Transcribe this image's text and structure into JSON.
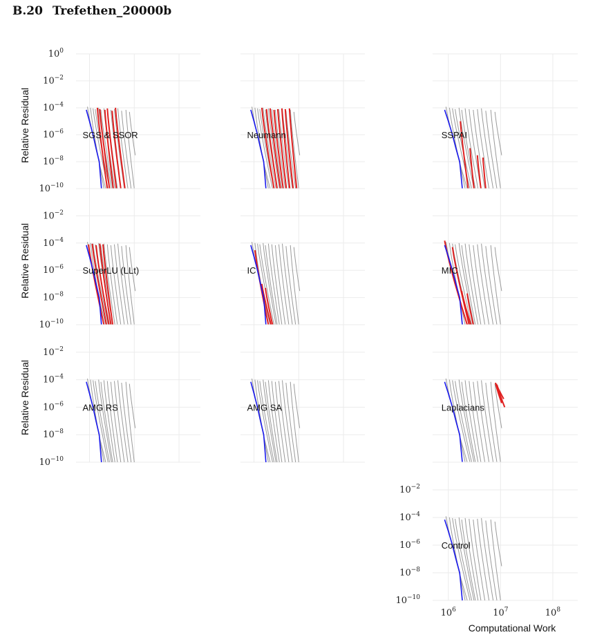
{
  "section": {
    "number": "B.20",
    "title": "Trefethen_20000b"
  },
  "colors": {
    "highlight": "#e02020",
    "baseline": "#1a1aee",
    "others": "#999999",
    "grid": "#ebebeb"
  },
  "chart_data": {
    "type": "line",
    "layout": "panel grid, 3 columns, shared log-log axes",
    "x_scale": "log",
    "y_scale": "log",
    "xlabel": "Computational Work",
    "ylabel": "Relative Residual",
    "xlim": [
      500000,
      300000000
    ],
    "ylim": [
      1e-10,
      1
    ],
    "x_ticks": [
      {
        "value": 1000000,
        "mantissa": "10",
        "exponent": "6"
      },
      {
        "value": 10000000,
        "mantissa": "10",
        "exponent": "7"
      },
      {
        "value": 100000000,
        "mantissa": "10",
        "exponent": "8"
      }
    ],
    "y_ticks": [
      {
        "value": 1,
        "mantissa": "10",
        "exponent": "0"
      },
      {
        "value": 0.01,
        "mantissa": "10",
        "exponent": "−2"
      },
      {
        "value": 0.0001,
        "mantissa": "10",
        "exponent": "−4"
      },
      {
        "value": 1e-06,
        "mantissa": "10",
        "exponent": "−6"
      },
      {
        "value": 1e-08,
        "mantissa": "10",
        "exponent": "−8"
      },
      {
        "value": 1e-10,
        "mantissa": "10",
        "exponent": "−10"
      }
    ],
    "baseline_curve": {
      "x": [
        850000,
        1000000,
        1200000,
        1400000,
        1650000,
        1850000
      ],
      "y": [
        7e-05,
        1e-05,
        1e-06,
        1e-07,
        1e-08,
        1e-10
      ]
    },
    "other_curves": [
      {
        "x0": 900000,
        "y0": 0.00012,
        "x1": 2300000,
        "y1": 1e-10
      },
      {
        "x0": 1050000,
        "y0": 0.0001,
        "x1": 2100000,
        "y1": 1e-10
      },
      {
        "x0": 1200000,
        "y0": 9e-05,
        "x1": 2600000,
        "y1": 1e-10
      },
      {
        "x0": 1350000,
        "y0": 8e-05,
        "x1": 2800000,
        "y1": 1e-10
      },
      {
        "x0": 1600000,
        "y0": 0.0001,
        "x1": 3100000,
        "y1": 1e-10
      },
      {
        "x0": 1800000,
        "y0": 7e-05,
        "x1": 3300000,
        "y1": 1e-10
      },
      {
        "x0": 2100000,
        "y0": 9e-05,
        "x1": 3700000,
        "y1": 1e-10
      },
      {
        "x0": 2500000,
        "y0": 8e-05,
        "x1": 4200000,
        "y1": 1e-10
      },
      {
        "x0": 3000000,
        "y0": 7e-05,
        "x1": 5000000,
        "y1": 1e-10
      },
      {
        "x0": 3600000,
        "y0": 8e-05,
        "x1": 6000000,
        "y1": 1e-10
      },
      {
        "x0": 4300000,
        "y0": 9e-05,
        "x1": 7200000,
        "y1": 1e-10
      },
      {
        "x0": 5200000,
        "y0": 6e-05,
        "x1": 8500000,
        "y1": 1e-10
      },
      {
        "x0": 6500000,
        "y0": 7e-05,
        "x1": 10000000,
        "y1": 1e-10
      },
      {
        "x0": 7800000,
        "y0": 5e-05,
        "x1": 10500000,
        "y1": 3e-08
      }
    ],
    "panels": [
      {
        "label": "SGS & SSOR",
        "highlight": [
          {
            "x0": 1500000,
            "y0": 0.0001,
            "x1": 2500000,
            "y1": 1e-10
          },
          {
            "x0": 1700000,
            "y0": 8e-05,
            "x1": 2800000,
            "y1": 1e-10
          },
          {
            "x0": 2200000,
            "y0": 7e-05,
            "x1": 3400000,
            "y1": 1e-10
          },
          {
            "x0": 2500000,
            "y0": 9e-05,
            "x1": 4000000,
            "y1": 1e-10
          },
          {
            "x0": 3200000,
            "y0": 6e-05,
            "x1": 5000000,
            "y1": 1e-10
          },
          {
            "x0": 3800000,
            "y0": 0.0001,
            "x1": 6200000,
            "y1": 1e-10
          }
        ]
      },
      {
        "label": "Neumann",
        "highlight": [
          {
            "x0": 1500000,
            "y0": 0.0001,
            "x1": 2800000,
            "y1": 1e-10
          },
          {
            "x0": 1900000,
            "y0": 8e-05,
            "x1": 3300000,
            "y1": 1e-10
          },
          {
            "x0": 2300000,
            "y0": 9e-05,
            "x1": 3900000,
            "y1": 1e-10
          },
          {
            "x0": 2800000,
            "y0": 7e-05,
            "x1": 4500000,
            "y1": 1e-10
          },
          {
            "x0": 3400000,
            "y0": 8e-05,
            "x1": 5300000,
            "y1": 1e-10
          },
          {
            "x0": 4200000,
            "y0": 9e-05,
            "x1": 6300000,
            "y1": 1e-10
          },
          {
            "x0": 5000000,
            "y0": 8e-05,
            "x1": 7500000,
            "y1": 1e-10
          },
          {
            "x0": 6200000,
            "y0": 9e-05,
            "x1": 9000000,
            "y1": 1e-10
          }
        ]
      },
      {
        "label": "SSPAI",
        "highlight": [
          {
            "x0": 1700000,
            "y0": 1e-05,
            "x1": 2400000,
            "y1": 1e-10
          },
          {
            "x0": 2600000,
            "y0": 1e-07,
            "x1": 3100000,
            "y1": 1e-10
          },
          {
            "x0": 3600000,
            "y0": 3e-08,
            "x1": 4200000,
            "y1": 1e-10
          },
          {
            "x0": 4600000,
            "y0": 2e-08,
            "x1": 5200000,
            "y1": 1e-10
          }
        ]
      },
      {
        "label": "SuperLU (LLt)",
        "highlight": [
          {
            "x0": 950000,
            "y0": 8e-05,
            "x1": 2100000,
            "y1": 1e-10
          },
          {
            "x0": 1150000,
            "y0": 9e-05,
            "x1": 2400000,
            "y1": 1e-10
          },
          {
            "x0": 1400000,
            "y0": 7e-05,
            "x1": 2700000,
            "y1": 1e-10
          },
          {
            "x0": 1700000,
            "y0": 9e-05,
            "x1": 3000000,
            "y1": 1e-10
          },
          {
            "x0": 2000000,
            "y0": 8e-05,
            "x1": 3300000,
            "y1": 1e-10
          }
        ]
      },
      {
        "label": "IC",
        "highlight": [
          {
            "x0": 1050000,
            "y0": 3e-05,
            "x1": 2100000,
            "y1": 1e-10
          },
          {
            "x0": 1500000,
            "y0": 1e-07,
            "x1": 2400000,
            "y1": 1e-10
          },
          {
            "x0": 1800000,
            "y0": 5e-08,
            "x1": 2600000,
            "y1": 1e-10
          }
        ]
      },
      {
        "label": "MIC",
        "highlight": [
          {
            "x0": 850000,
            "y0": 0.00015,
            "x1": 2300000,
            "y1": 1e-10
          },
          {
            "x0": 1200000,
            "y0": 5e-05,
            "x1": 2500000,
            "y1": 1e-10
          },
          {
            "x0": 1800000,
            "y0": 3e-08,
            "x1": 2700000,
            "y1": 1e-10
          },
          {
            "x0": 2300000,
            "y0": 2e-08,
            "x1": 3000000,
            "y1": 1e-10
          }
        ]
      },
      {
        "label": "AMG RS",
        "highlight": []
      },
      {
        "label": "AMG SA",
        "highlight": []
      },
      {
        "label": "Laplacians",
        "highlight": [
          {
            "x0": 8000000,
            "y0": 6e-05,
            "x1": 10500000,
            "y1": 2e-06
          },
          {
            "x0": 8300000,
            "y0": 5e-05,
            "x1": 11500000,
            "y1": 4e-06
          },
          {
            "x0": 8600000,
            "y0": 4e-05,
            "x1": 12000000,
            "y1": 1e-06
          }
        ]
      },
      {
        "label": "Control",
        "highlight": []
      }
    ]
  }
}
